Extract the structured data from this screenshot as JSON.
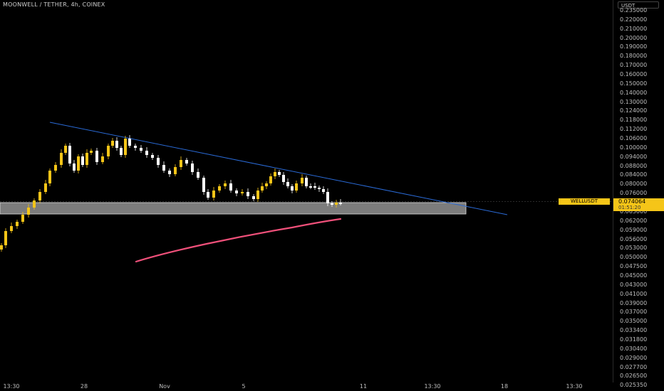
{
  "header": {
    "title": "MOONWELL / TETHER, 4h, COINEX"
  },
  "price_axis": {
    "unit": "USDT",
    "ticks": [
      "0.235000",
      "0.220000",
      "0.210000",
      "0.200000",
      "0.190000",
      "0.180000",
      "0.170000",
      "0.160000",
      "0.150000",
      "0.140000",
      "0.130000",
      "0.124000",
      "0.118000",
      "0.112000",
      "0.106000",
      "0.100000",
      "0.094000",
      "0.088000",
      "0.084000",
      "0.080000",
      "0.076000",
      "0.068000",
      "0.065000",
      "0.062000",
      "0.059000",
      "0.056000",
      "0.053000",
      "0.050000",
      "0.047500",
      "0.045000",
      "0.043000",
      "0.041000",
      "0.039000",
      "0.037000",
      "0.035000",
      "0.033400",
      "0.031800",
      "0.030400",
      "0.029000",
      "0.027700",
      "0.026500",
      "0.025350"
    ]
  },
  "current_price": {
    "value": "0.074064",
    "countdown": "01:51:20",
    "symbol": "WELLUSDT"
  },
  "time_axis": {
    "labels": [
      "13:30",
      "28",
      "Nov",
      "5",
      "11",
      "13:30",
      "18",
      "13:30"
    ]
  },
  "colors": {
    "bull": "#f5c518",
    "bear": "#ffffff",
    "trendline": "#2a6ad6",
    "ma": "#f0507a",
    "zone": "#c8c8c8",
    "badge": "#f5c518"
  }
}
